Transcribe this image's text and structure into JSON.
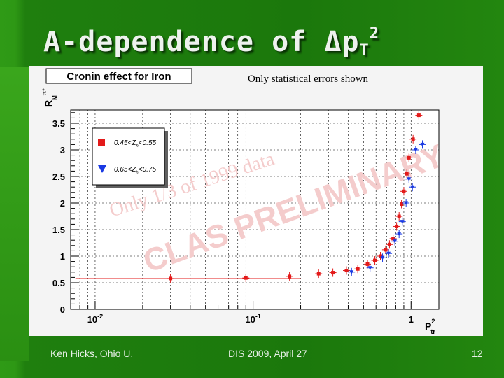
{
  "slide": {
    "title_prefix": "A-dependence of ",
    "title_delta": "Δp",
    "title_sub": "T",
    "title_sup": "2",
    "footer_left": "Ken Hicks, Ohio U.",
    "footer_center": "DIS 2009, April 27",
    "footer_right": "12"
  },
  "chart_data": {
    "type": "scatter",
    "title": "Cronin effect for Iron",
    "subtitle": "Only statistical errors shown",
    "xlabel": "P",
    "xlabel_sup": "2",
    "xlabel_sub": "tr",
    "ylabel": "R",
    "ylabel_sup": "π⁺",
    "ylabel_sub": "M",
    "x_scale": "log",
    "xlim": [
      0.007,
      1.5
    ],
    "ylim": [
      0,
      3.75
    ],
    "x_ticks": [
      {
        "v": 0.01,
        "label": "10",
        "sup": "-2"
      },
      {
        "v": 0.1,
        "label": "10",
        "sup": "-1"
      },
      {
        "v": 1,
        "label": "1",
        "sup": ""
      }
    ],
    "y_ticks": [
      {
        "v": 0,
        "label": "0"
      },
      {
        "v": 0.5,
        "label": "0.5"
      },
      {
        "v": 1,
        "label": "1"
      },
      {
        "v": 1.5,
        "label": "1.5"
      },
      {
        "v": 2,
        "label": "2"
      },
      {
        "v": 2.5,
        "label": "2.5"
      },
      {
        "v": 3,
        "label": "3"
      },
      {
        "v": 3.5,
        "label": "3.5"
      }
    ],
    "grid": true,
    "legend_position": "top-left",
    "watermark_line1": "CLAS PRELIMINARY",
    "watermark_line2": "Only 1/3 of 1999 data",
    "series": [
      {
        "name": "0.45<Z_h<0.55",
        "label_main": "0.45<Z",
        "label_sub": "h",
        "label_tail": "<0.55",
        "color": "#e31a1a",
        "marker": "square",
        "points": [
          {
            "x": 0.03,
            "y": 0.58
          },
          {
            "x": 0.09,
            "y": 0.59
          },
          {
            "x": 0.17,
            "y": 0.62
          },
          {
            "x": 0.26,
            "y": 0.67
          },
          {
            "x": 0.32,
            "y": 0.69
          },
          {
            "x": 0.39,
            "y": 0.73
          },
          {
            "x": 0.46,
            "y": 0.76
          },
          {
            "x": 0.53,
            "y": 0.85
          },
          {
            "x": 0.59,
            "y": 0.92
          },
          {
            "x": 0.64,
            "y": 1.0
          },
          {
            "x": 0.69,
            "y": 1.12
          },
          {
            "x": 0.73,
            "y": 1.22
          },
          {
            "x": 0.77,
            "y": 1.33
          },
          {
            "x": 0.81,
            "y": 1.56
          },
          {
            "x": 0.84,
            "y": 1.75
          },
          {
            "x": 0.87,
            "y": 1.98
          },
          {
            "x": 0.9,
            "y": 2.22
          },
          {
            "x": 0.94,
            "y": 2.55
          },
          {
            "x": 0.97,
            "y": 2.85
          },
          {
            "x": 1.03,
            "y": 3.2
          },
          {
            "x": 1.12,
            "y": 3.65
          }
        ]
      },
      {
        "name": "0.65<Z_h<0.75",
        "label_main": "0.65<Z",
        "label_sub": "h",
        "label_tail": "<0.75",
        "color": "#1a3ae3",
        "marker": "triangle-down",
        "points": [
          {
            "x": 0.42,
            "y": 0.7
          },
          {
            "x": 0.55,
            "y": 0.78
          },
          {
            "x": 0.66,
            "y": 0.97
          },
          {
            "x": 0.72,
            "y": 1.05
          },
          {
            "x": 0.79,
            "y": 1.28
          },
          {
            "x": 0.84,
            "y": 1.42
          },
          {
            "x": 0.88,
            "y": 1.65
          },
          {
            "x": 0.93,
            "y": 2.0
          },
          {
            "x": 0.97,
            "y": 2.45
          },
          {
            "x": 1.02,
            "y": 2.3
          },
          {
            "x": 1.07,
            "y": 3.0
          },
          {
            "x": 1.18,
            "y": 3.1
          }
        ]
      }
    ]
  }
}
